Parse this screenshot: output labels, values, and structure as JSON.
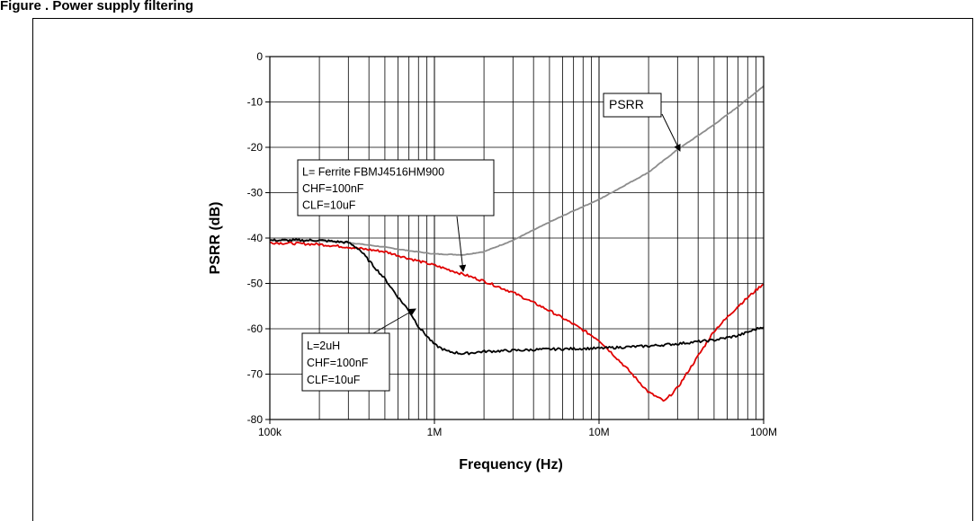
{
  "caption": "Figure . Power supply filtering",
  "chart_data": {
    "type": "line",
    "x_scale": "log",
    "xlim": [
      100000,
      100000000
    ],
    "ylim": [
      -80,
      0
    ],
    "xlabel": "Frequency  (Hz)",
    "ylabel": "PSRR  (dB)",
    "x_ticks": [
      {
        "value": 100000,
        "label": "100k"
      },
      {
        "value": 1000000,
        "label": "1M"
      },
      {
        "value": 10000000,
        "label": "10M"
      },
      {
        "value": 100000000,
        "label": "100M"
      }
    ],
    "y_ticks": [
      0,
      -10,
      -20,
      -30,
      -40,
      -50,
      -60,
      -70,
      -80
    ],
    "grid": true,
    "series": [
      {
        "name": "PSRR",
        "color": "#8c8c8c",
        "x": [
          100000,
          200000,
          300000,
          500000,
          700000,
          1000000,
          1500000,
          2000000,
          3000000,
          5000000,
          7000000,
          10000000,
          20000000,
          30000000,
          50000000,
          70000000,
          100000000
        ],
        "y": [
          -40.5,
          -40.6,
          -41,
          -42,
          -42.8,
          -43.5,
          -43.7,
          -43,
          -40.5,
          -36.5,
          -34,
          -31.5,
          -25.5,
          -20.5,
          -15,
          -11,
          -6.5
        ]
      },
      {
        "color": "#e00000",
        "x": [
          100000,
          200000,
          300000,
          500000,
          700000,
          1000000,
          1500000,
          2000000,
          3000000,
          5000000,
          7000000,
          10000000,
          15000000,
          20000000,
          25000000,
          30000000,
          40000000,
          50000000,
          70000000,
          100000000
        ],
        "y": [
          -41,
          -41.4,
          -42,
          -43,
          -44.5,
          -46,
          -48,
          -49.5,
          -52,
          -56,
          -59,
          -62.5,
          -69,
          -74,
          -76,
          -73,
          -66,
          -60.5,
          -55,
          -50
        ]
      },
      {
        "color": "#000000",
        "x": [
          100000,
          200000,
          300000,
          350000,
          400000,
          500000,
          600000,
          700000,
          800000,
          1000000,
          1200000,
          1500000,
          2000000,
          3000000,
          5000000,
          10000000,
          20000000,
          30000000,
          50000000,
          70000000,
          100000000
        ],
        "y": [
          -40.5,
          -40.5,
          -41,
          -42.5,
          -45,
          -49,
          -53,
          -56,
          -59.5,
          -63.5,
          -65,
          -65.5,
          -65,
          -64.8,
          -64.5,
          -64.3,
          -63.8,
          -63.3,
          -62.5,
          -61.5,
          -59.5
        ]
      }
    ],
    "annotations": [
      {
        "id": "psrr",
        "lines": [
          "PSRR"
        ]
      },
      {
        "id": "ferrite",
        "lines": [
          "L= Ferrite FBMJ4516HM900",
          "CHF=100nF",
          "CLF=10uF"
        ]
      },
      {
        "id": "inductor",
        "lines": [
          "L=2uH",
          "CHF=100nF",
          "CLF=10uF"
        ]
      }
    ]
  }
}
